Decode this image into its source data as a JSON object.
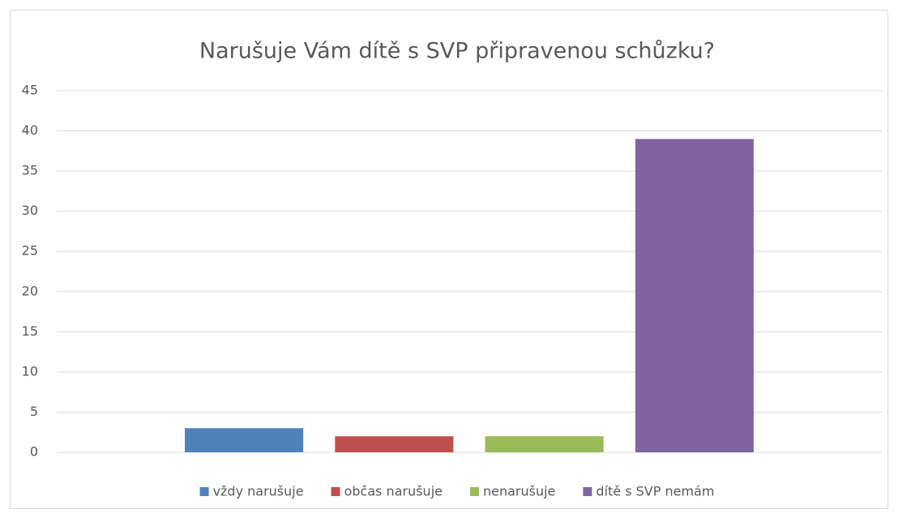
{
  "chart_data": {
    "type": "bar",
    "title": "Narušuje Vám dítě s SVP připravenou schůzku?",
    "categories": [
      null
    ],
    "series": [
      {
        "name": "vždy narušuje",
        "color": "#4f81bd",
        "values": [
          3
        ]
      },
      {
        "name": "občas narušuje",
        "color": "#c0504d",
        "values": [
          2
        ]
      },
      {
        "name": "nenarušuje",
        "color": "#9bbb59",
        "values": [
          2
        ]
      },
      {
        "name": "dítě s SVP nemám",
        "color": "#8064a2",
        "values": [
          39
        ]
      }
    ],
    "ylim": [
      0,
      45
    ],
    "yticks": [
      0,
      5,
      10,
      15,
      20,
      25,
      30,
      35,
      40,
      45
    ],
    "grid": true,
    "legend": "bottom"
  }
}
